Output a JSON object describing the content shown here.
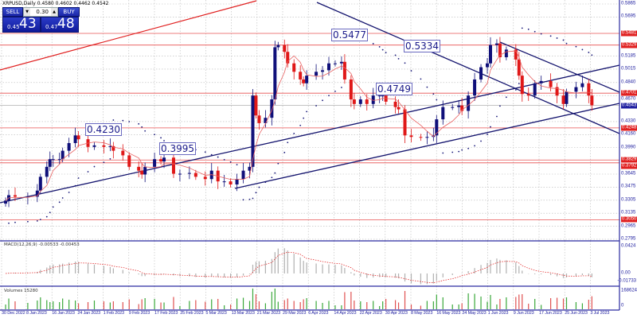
{
  "window": {
    "title": "XRPUSD,Daily  0.4580 0.4602 0.4462 0.4542"
  },
  "trade_panel": {
    "sell_label": "SELL",
    "buy_label": "BUY",
    "lot": "0.30",
    "spin_down_icon": "triangle-down",
    "spin_up_icon": "triangle-up",
    "bid_small": "0.45",
    "bid_big": "43",
    "ask_small": "0.47",
    "ask_big": "48",
    "color": "#1a25a8"
  },
  "colors": {
    "bull": "#10107a",
    "bear": "#e01818",
    "level": "#e85050",
    "trend": "#14146e",
    "ma": "#e86060",
    "grid": "#b8b8b8",
    "volume_up": "#3aa83a",
    "volume_down": "#e05050"
  },
  "annotations": [
    "0.4230",
    "0.3995",
    "0.5477",
    "0.5334",
    "0.4749"
  ],
  "price_axis": {
    "ticks": [
      "0.5865",
      "0.5695",
      "0.5185",
      "0.5015",
      "0.4840",
      "0.4670",
      "0.4330",
      "0.4160",
      "0.3990",
      "0.3645",
      "0.3475",
      "0.3305",
      "0.3135",
      "0.2965",
      "0.2795"
    ],
    "levels": [
      "0.5481",
      "0.5329",
      "0.4701",
      "0.4248",
      "0.3829",
      "0.3792",
      "0.3050"
    ],
    "current": "0.4543"
  },
  "time_axis": [
    "30 Dec 2022",
    "8 Jan 2023",
    "16 Jan 2023",
    "24 Jan 2023",
    "1 Feb 2023",
    "9 Feb 2023",
    "17 Feb 2023",
    "25 Feb 2023",
    "5 Mar 2023",
    "13 Mar 2023",
    "21 Mar 2023",
    "29 Mar 2023",
    "6 Apr 2023",
    "14 Apr 2023",
    "22 Apr 2023",
    "30 Apr 2023",
    "8 May 2023",
    "16 May 2023",
    "24 May 2023",
    "1 Jun 2023",
    "9 Jun 2023",
    "17 Jun 2023",
    "25 Jun 2023",
    "3 Jul 2023"
  ],
  "macd": {
    "label": "MACD(12,26,9) -0.00533 -0.00453",
    "max": "0.0424",
    "zero": "0.00",
    "min": "-0.01733"
  },
  "volumes": {
    "label": "Volumes 15280",
    "max": "168624",
    "zero": "0"
  },
  "chart_data": {
    "type": "candlestick",
    "symbol": "XRPUSD",
    "timeframe": "Daily",
    "ylim": [
      0.2795,
      0.5865
    ],
    "dates": [
      "2022-12-28",
      "2022-12-29",
      "2022-12-31",
      "2023-01-04",
      "2023-01-07",
      "2023-01-08",
      "2023-01-10",
      "2023-01-11",
      "2023-01-12",
      "2023-01-14",
      "2023-01-15",
      "2023-01-17",
      "2023-01-19",
      "2023-01-20",
      "2023-01-23",
      "2023-01-25",
      "2023-01-28",
      "2023-01-30",
      "2023-01-31",
      "2023-02-03",
      "2023-02-05",
      "2023-02-08",
      "2023-02-09",
      "2023-02-10",
      "2023-02-13",
      "2023-02-15",
      "2023-02-16",
      "2023-02-19",
      "2023-02-21",
      "2023-02-24",
      "2023-02-26",
      "2023-03-01",
      "2023-03-03",
      "2023-03-05",
      "2023-03-07",
      "2023-03-09",
      "2023-03-11",
      "2023-03-13",
      "2023-03-15",
      "2023-03-16",
      "2023-03-17",
      "2023-03-18",
      "2023-03-20",
      "2023-03-22",
      "2023-03-23",
      "2023-03-24",
      "2023-03-26",
      "2023-03-27",
      "2023-03-29",
      "2023-03-31",
      "2023-04-01",
      "2023-04-02",
      "2023-04-05",
      "2023-04-07",
      "2023-04-09",
      "2023-04-11",
      "2023-04-13",
      "2023-04-14",
      "2023-04-16",
      "2023-04-17",
      "2023-04-19",
      "2023-04-21",
      "2023-04-23",
      "2023-04-25",
      "2023-04-26",
      "2023-04-27",
      "2023-04-30",
      "2023-05-01",
      "2023-05-03",
      "2023-05-05",
      "2023-05-08",
      "2023-05-10",
      "2023-05-12",
      "2023-05-13",
      "2023-05-15",
      "2023-05-18",
      "2023-05-20",
      "2023-05-21",
      "2023-05-23",
      "2023-05-25",
      "2023-05-27",
      "2023-05-29",
      "2023-05-30",
      "2023-06-01",
      "2023-06-02",
      "2023-06-04",
      "2023-06-07",
      "2023-06-08",
      "2023-06-09",
      "2023-06-11",
      "2023-06-13",
      "2023-06-15",
      "2023-06-18",
      "2023-06-20",
      "2023-06-22",
      "2023-06-23",
      "2023-06-26",
      "2023-06-28",
      "2023-06-30",
      "2023-07-01"
    ],
    "close": [
      0.33,
      0.337,
      0.335,
      0.335,
      0.343,
      0.361,
      0.374,
      0.384,
      0.384,
      0.384,
      0.395,
      0.405,
      0.415,
      0.41,
      0.4,
      0.402,
      0.4,
      0.401,
      0.395,
      0.389,
      0.374,
      0.369,
      0.364,
      0.374,
      0.384,
      0.381,
      0.386,
      0.365,
      0.365,
      0.366,
      0.361,
      0.358,
      0.369,
      0.355,
      0.355,
      0.351,
      0.358,
      0.369,
      0.374,
      0.467,
      0.441,
      0.431,
      0.438,
      0.462,
      0.53,
      0.533,
      0.524,
      0.509,
      0.498,
      0.488,
      0.483,
      0.493,
      0.498,
      0.5,
      0.509,
      0.509,
      0.511,
      0.488,
      0.462,
      0.456,
      0.462,
      0.456,
      0.467,
      0.467,
      0.467,
      0.459,
      0.452,
      0.449,
      0.415,
      0.413,
      0.412,
      0.413,
      0.415,
      0.436,
      0.452,
      0.452,
      0.454,
      0.447,
      0.467,
      0.488,
      0.504,
      0.509,
      0.533,
      0.535,
      0.517,
      0.527,
      0.514,
      0.493,
      0.469,
      0.467,
      0.483,
      0.486,
      0.478,
      0.467,
      0.456,
      0.472,
      0.478,
      0.483,
      0.467,
      0.4543
    ]
  }
}
